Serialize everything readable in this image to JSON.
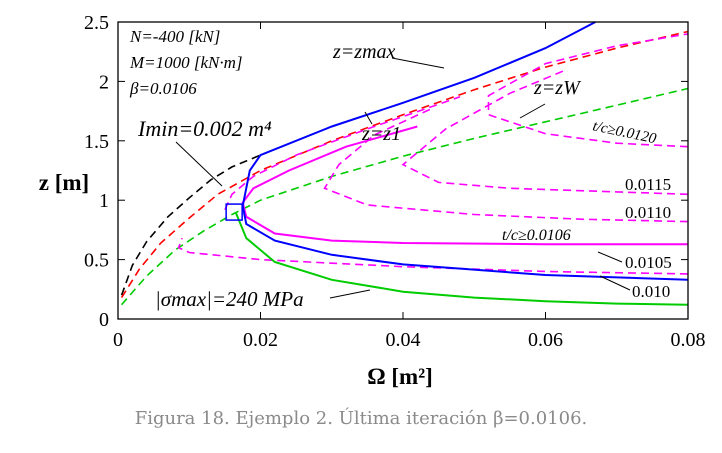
{
  "chart_data": {
    "type": "line",
    "xlabel": "Ω [m²]",
    "ylabel": "z [m]",
    "xlim": [
      0,
      0.08
    ],
    "ylim": [
      0,
      2.5
    ],
    "xticks": [
      "0",
      "0.02",
      "0.04",
      "0.06",
      "0.08"
    ],
    "yticks": [
      "0",
      "0.5",
      "1",
      "1.5",
      "2",
      "2.5"
    ],
    "grid": false,
    "params": [
      "N=-400 [kN]",
      "M=1000 [kN·m]",
      "β=0.0106"
    ],
    "labels": {
      "i_min": "Imin=0.002 m⁴",
      "z_max": "z=zmax",
      "z_w": "z=zW",
      "z_1": "z=z1",
      "sigma": "|σmax|=240 MPa",
      "tc_0120": "t/c≥0.0120",
      "tc_0115": "0.0115",
      "tc_0110": "0.0110",
      "tc_0106": "t/c≥0.0106",
      "tc_0105": "0.0105",
      "tc_0100": "0.010"
    },
    "series": [
      {
        "key": "imin",
        "color": "#000000",
        "dash": true,
        "points": [
          [
            0.0005,
            0.2
          ],
          [
            0.002,
            0.45
          ],
          [
            0.004,
            0.65
          ],
          [
            0.007,
            0.86
          ],
          [
            0.01,
            1.02
          ],
          [
            0.013,
            1.17
          ],
          [
            0.016,
            1.28
          ],
          [
            0.02,
            1.38
          ]
        ]
      },
      {
        "key": "zmax",
        "color": "#ff0000",
        "dash": true,
        "points": [
          [
            0.0005,
            0.18
          ],
          [
            0.003,
            0.42
          ],
          [
            0.006,
            0.64
          ],
          [
            0.01,
            0.85
          ],
          [
            0.014,
            1.05
          ],
          [
            0.02,
            1.25
          ],
          [
            0.03,
            1.5
          ],
          [
            0.04,
            1.72
          ],
          [
            0.05,
            1.93
          ],
          [
            0.06,
            2.12
          ],
          [
            0.07,
            2.28
          ],
          [
            0.08,
            2.42
          ]
        ]
      },
      {
        "key": "zw",
        "color": "#00cc00",
        "dash": true,
        "points": [
          [
            0.0005,
            0.12
          ],
          [
            0.004,
            0.36
          ],
          [
            0.008,
            0.58
          ],
          [
            0.012,
            0.74
          ],
          [
            0.016,
            0.88
          ],
          [
            0.02,
            1.0
          ],
          [
            0.03,
            1.2
          ],
          [
            0.04,
            1.37
          ],
          [
            0.05,
            1.52
          ],
          [
            0.06,
            1.66
          ],
          [
            0.07,
            1.8
          ],
          [
            0.08,
            1.94
          ]
        ]
      },
      {
        "key": "z1",
        "color": "#ff00ff",
        "dash": true,
        "points": [
          [
            0.015,
            0.92
          ],
          [
            0.016,
            1.05
          ],
          [
            0.019,
            1.2
          ],
          [
            0.025,
            1.38
          ],
          [
            0.035,
            1.6
          ],
          [
            0.048,
            1.87
          ]
        ]
      },
      {
        "key": "c0120",
        "color": "#ff00ff",
        "dash": true,
        "points": [
          [
            0.08,
            1.45
          ],
          [
            0.07,
            1.48
          ],
          [
            0.06,
            1.56
          ],
          [
            0.052,
            1.72
          ],
          [
            0.052,
            1.88
          ],
          [
            0.06,
            2.15
          ],
          [
            0.07,
            2.3
          ],
          [
            0.08,
            2.4
          ]
        ]
      },
      {
        "key": "c0115",
        "color": "#ff00ff",
        "dash": true,
        "points": [
          [
            0.08,
            1.05
          ],
          [
            0.07,
            1.07
          ],
          [
            0.055,
            1.1
          ],
          [
            0.045,
            1.15
          ],
          [
            0.04,
            1.3
          ],
          [
            0.046,
            1.6
          ],
          [
            0.055,
            1.9
          ],
          [
            0.063,
            2.1
          ]
        ]
      },
      {
        "key": "c0110",
        "color": "#ff00ff",
        "dash": true,
        "points": [
          [
            0.08,
            0.82
          ],
          [
            0.065,
            0.84
          ],
          [
            0.05,
            0.88
          ],
          [
            0.035,
            0.96
          ],
          [
            0.029,
            1.1
          ],
          [
            0.031,
            1.3
          ],
          [
            0.036,
            1.55
          ],
          [
            0.044,
            1.77
          ]
        ]
      },
      {
        "key": "c0106",
        "color": "#ff00ff",
        "dash": false,
        "points": [
          [
            0.08,
            0.63
          ],
          [
            0.06,
            0.63
          ],
          [
            0.04,
            0.64
          ],
          [
            0.03,
            0.66
          ],
          [
            0.022,
            0.72
          ],
          [
            0.018,
            0.86
          ],
          [
            0.0175,
            0.98
          ],
          [
            0.019,
            1.1
          ],
          [
            0.024,
            1.25
          ],
          [
            0.032,
            1.45
          ],
          [
            0.042,
            1.62
          ]
        ]
      },
      {
        "key": "c0105",
        "color": "#ff00ff",
        "dash": true,
        "points": [
          [
            0.08,
            0.38
          ],
          [
            0.06,
            0.4
          ],
          [
            0.04,
            0.44
          ],
          [
            0.02,
            0.5
          ],
          [
            0.01,
            0.56
          ],
          [
            0.0085,
            0.6
          ],
          [
            0.009,
            0.68
          ]
        ]
      },
      {
        "key": "c0100",
        "color": "#0000ff",
        "dash": false,
        "points": [
          [
            0.08,
            0.33
          ],
          [
            0.06,
            0.37
          ],
          [
            0.04,
            0.46
          ],
          [
            0.03,
            0.54
          ],
          [
            0.022,
            0.66
          ],
          [
            0.018,
            0.8
          ],
          [
            0.0175,
            0.95
          ],
          [
            0.0185,
            1.25
          ],
          [
            0.02,
            1.38
          ],
          [
            0.03,
            1.62
          ],
          [
            0.04,
            1.82
          ],
          [
            0.05,
            2.03
          ],
          [
            0.06,
            2.28
          ],
          [
            0.067,
            2.5
          ]
        ]
      },
      {
        "key": "sigma",
        "color": "#00cc00",
        "dash": false,
        "points": [
          [
            0.0165,
            0.9
          ],
          [
            0.018,
            0.68
          ],
          [
            0.022,
            0.48
          ],
          [
            0.03,
            0.33
          ],
          [
            0.04,
            0.23
          ],
          [
            0.05,
            0.18
          ],
          [
            0.06,
            0.15
          ],
          [
            0.07,
            0.13
          ],
          [
            0.08,
            0.12
          ]
        ]
      }
    ],
    "solution_box": {
      "x": 0.0163,
      "y": 0.9
    }
  },
  "caption": "Figura 18. Ejemplo 2. Última iteración β=0.0106."
}
